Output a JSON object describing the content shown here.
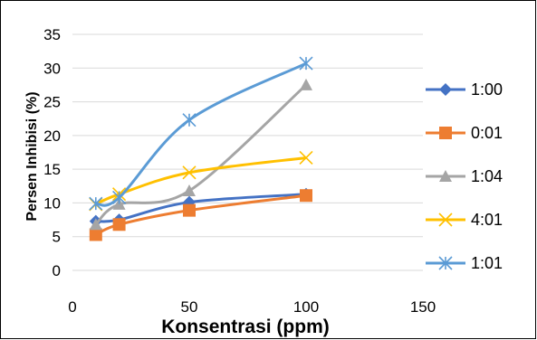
{
  "chart_data": {
    "type": "scatter",
    "xlabel": "Konsentrasi (ppm)",
    "ylabel": "Persen Inhibisi (%)",
    "xlim": [
      0,
      150
    ],
    "ylim": [
      0,
      35
    ],
    "xticks": [
      0,
      50,
      100,
      150
    ],
    "yticks": [
      0,
      5,
      10,
      15,
      20,
      25,
      30,
      35
    ],
    "grid": "horizontal",
    "legend_position": "right",
    "smooth_lines": true,
    "series": [
      {
        "name": "1:00",
        "color": "#4472C4",
        "marker": "diamond",
        "x": [
          10,
          20,
          50,
          100
        ],
        "y": [
          7.3,
          7.5,
          10.1,
          11.3
        ]
      },
      {
        "name": "0:01",
        "color": "#ED7D31",
        "marker": "square",
        "x": [
          10,
          20,
          50,
          100
        ],
        "y": [
          5.3,
          6.8,
          8.9,
          11.1
        ]
      },
      {
        "name": "1:04",
        "color": "#A5A5A5",
        "marker": "triangle",
        "x": [
          10,
          20,
          50,
          100
        ],
        "y": [
          6.8,
          9.8,
          11.8,
          27.5
        ]
      },
      {
        "name": "4:01",
        "color": "#FFC000",
        "marker": "x",
        "x": [
          10,
          20,
          50,
          100
        ],
        "y": [
          9.8,
          11.3,
          14.5,
          16.7
        ]
      },
      {
        "name": "1:01",
        "color": "#5B9BD5",
        "marker": "star",
        "x": [
          10,
          20,
          50,
          100
        ],
        "y": [
          9.9,
          10.8,
          22.3,
          30.7
        ]
      }
    ]
  }
}
